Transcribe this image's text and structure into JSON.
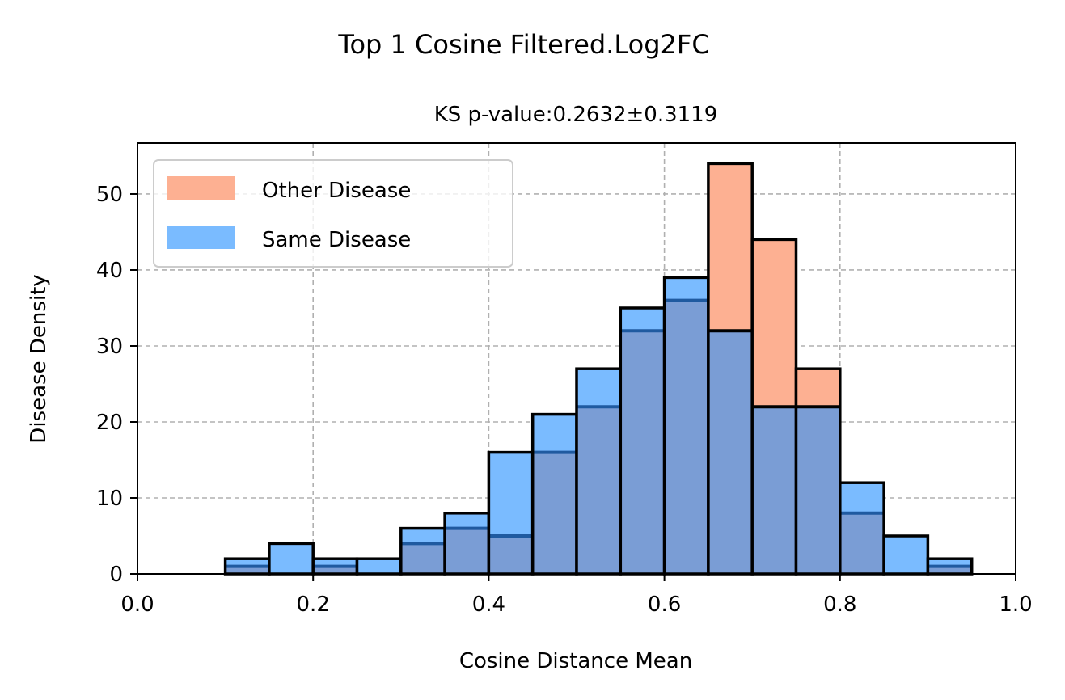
{
  "chart_data": {
    "type": "histogram",
    "suptitle": "Top 1 Cosine Filtered.Log2FC",
    "title": "KS p-value:0.2632±0.3119",
    "xlabel": "Cosine Distance Mean",
    "ylabel": "Disease Density",
    "xlim": [
      0.0,
      1.0
    ],
    "ylim": [
      0,
      56.7
    ],
    "xticks": [
      0.0,
      0.2,
      0.4,
      0.6,
      0.8,
      1.0
    ],
    "xtick_labels": [
      "0.0",
      "0.2",
      "0.4",
      "0.6",
      "0.8",
      "1.0"
    ],
    "yticks": [
      0,
      10,
      20,
      30,
      40,
      50
    ],
    "ytick_labels": [
      "0",
      "10",
      "20",
      "30",
      "40",
      "50"
    ],
    "grid": true,
    "legend_position": "upper-left",
    "bin_edges": [
      0.1,
      0.15,
      0.2,
      0.25,
      0.3,
      0.35,
      0.4,
      0.45,
      0.5,
      0.55,
      0.6,
      0.65,
      0.7,
      0.75,
      0.8,
      0.85,
      0.9,
      0.95
    ],
    "series": [
      {
        "name": "Other Disease",
        "color": "#fdb092",
        "values": [
          1,
          0,
          1,
          0,
          4,
          6,
          5,
          16,
          22,
          32,
          36,
          54,
          44,
          27,
          8,
          0,
          1
        ]
      },
      {
        "name": "Same Disease",
        "color": "#7abbff",
        "values": [
          2,
          4,
          2,
          2,
          6,
          8,
          16,
          21,
          27,
          35,
          39,
          32,
          22,
          22,
          12,
          5,
          2
        ]
      }
    ],
    "overlap_color": "#7a9dd5",
    "edge_color": "#000000",
    "other_edge_color": "#1f5aa0"
  }
}
